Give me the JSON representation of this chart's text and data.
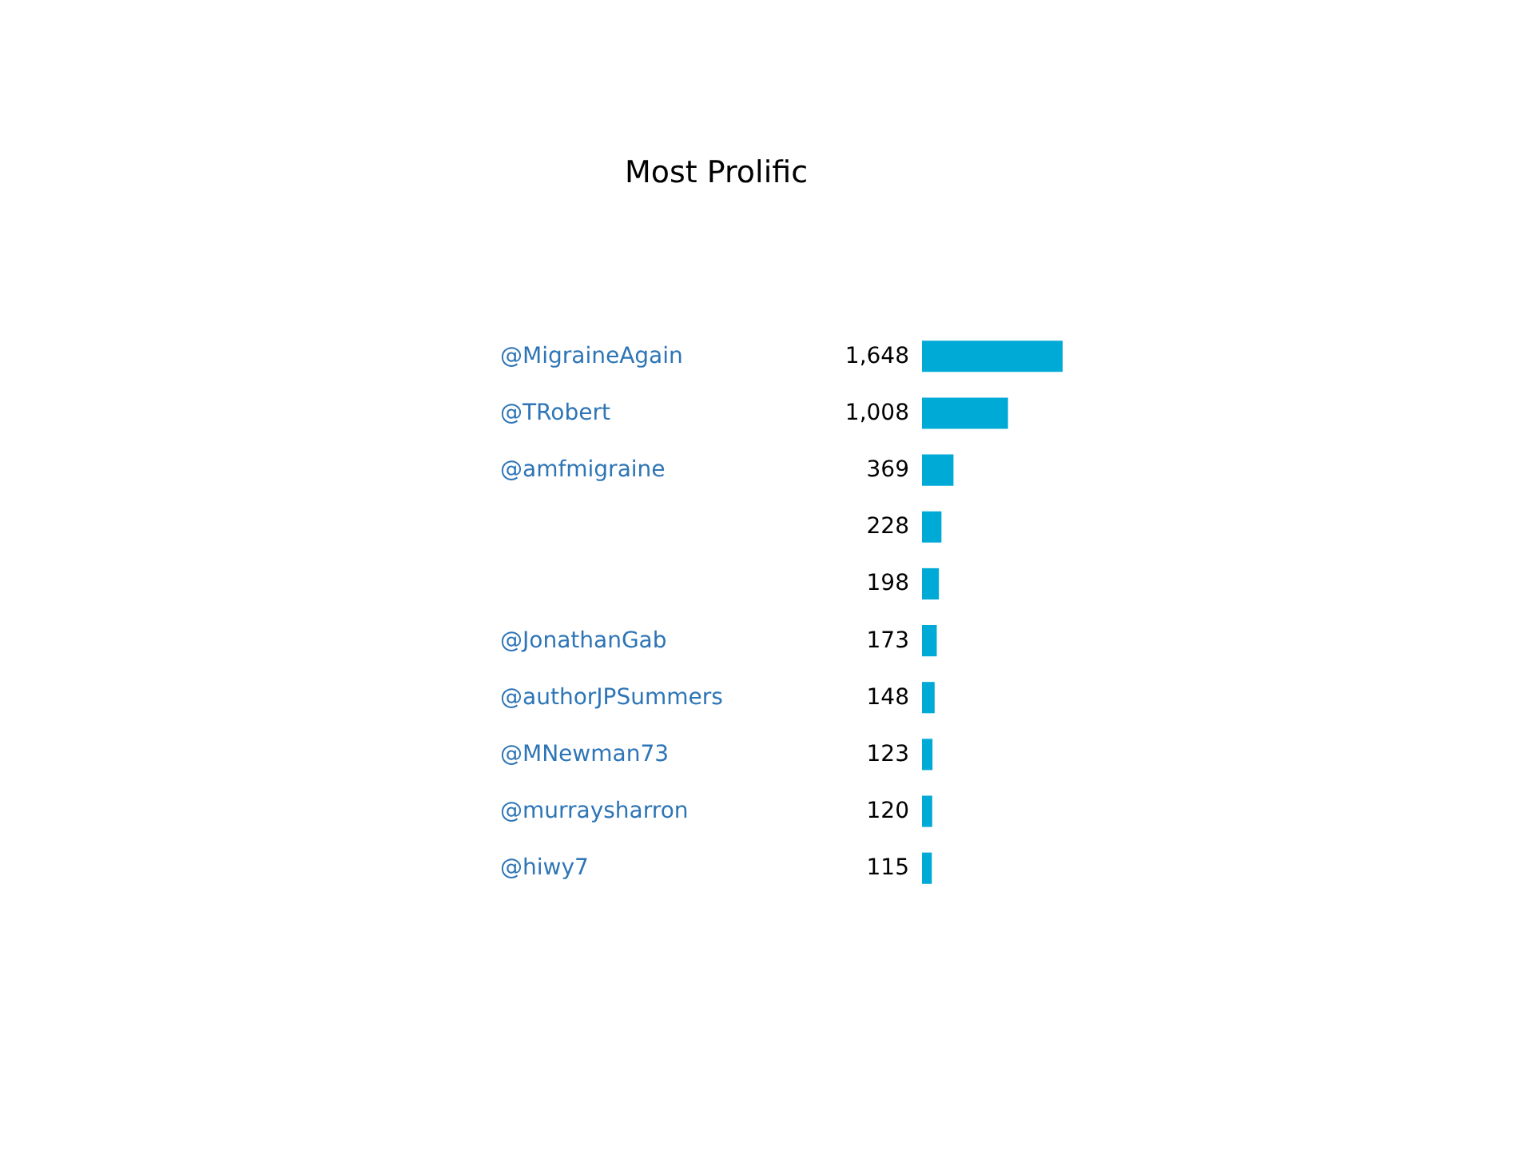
{
  "chart_data": {
    "type": "bar",
    "orientation": "horizontal",
    "title": "Most Prolific",
    "categories": [
      "@MigraineAgain",
      "@TRobert",
      "@amfmigraine",
      null,
      null,
      "@JonathanGab",
      "@authorJPSummers",
      "@MNewman73",
      "@murraysharron",
      "@hiwy7"
    ],
    "values": [
      1648,
      1008,
      369,
      228,
      198,
      173,
      148,
      123,
      120,
      115
    ],
    "value_labels": [
      "1,648",
      "1,008",
      "369",
      "228",
      "198",
      "173",
      "148",
      "123",
      "120",
      "115"
    ],
    "color": "#00aad6"
  }
}
